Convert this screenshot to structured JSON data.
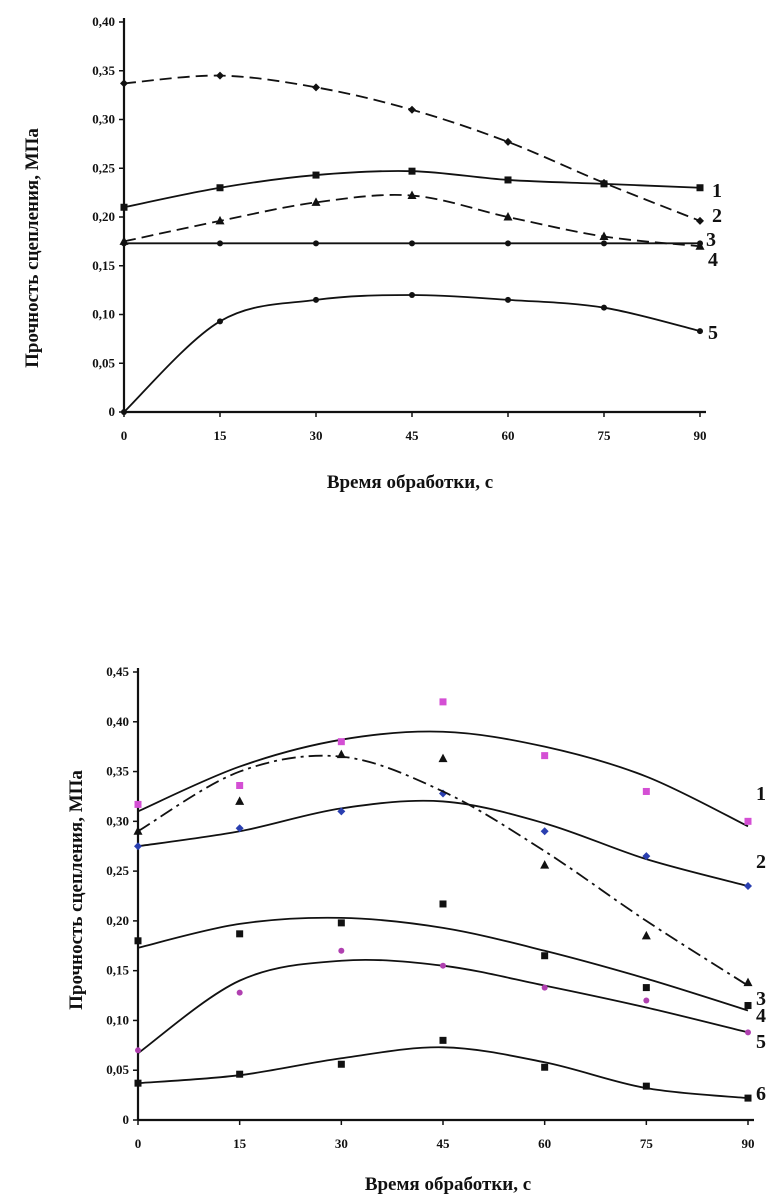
{
  "chart_data": [
    {
      "type": "line",
      "xlabel": "Время обработки, с",
      "ylabel": "Прочность сцепления, МПа",
      "xlim": [
        0,
        90
      ],
      "ylim": [
        0,
        0.4
      ],
      "x_ticks": [
        "0",
        "15",
        "30",
        "45",
        "60",
        "75",
        "90"
      ],
      "y_ticks": [
        "0",
        "0,05",
        "0,10",
        "0,15",
        "0,20",
        "0,25",
        "0,30",
        "0,35",
        "0,40"
      ],
      "grid": false,
      "legend": "curve labels at right end",
      "x": [
        0,
        15,
        30,
        45,
        60,
        75,
        90
      ],
      "series": [
        {
          "name": "1",
          "values": [
            0.21,
            0.23,
            0.243,
            0.247,
            0.238,
            0.234,
            0.23
          ],
          "style": "solid",
          "marker": "square"
        },
        {
          "name": "2",
          "values": [
            0.337,
            0.345,
            0.333,
            0.31,
            0.277,
            0.235,
            0.196
          ],
          "style": "dashed",
          "marker": "diamond"
        },
        {
          "name": "3",
          "values": [
            0.175,
            0.196,
            0.215,
            0.222,
            0.2,
            0.18,
            0.17
          ],
          "style": "dashed",
          "marker": "triangle"
        },
        {
          "name": "4",
          "values": [
            0.173,
            0.173,
            0.173,
            0.173,
            0.173,
            0.173,
            0.173
          ],
          "style": "solid",
          "marker": "dot"
        },
        {
          "name": "5",
          "values": [
            0.0,
            0.093,
            0.115,
            0.12,
            0.115,
            0.107,
            0.083
          ],
          "style": "solid",
          "marker": "dot"
        }
      ]
    },
    {
      "type": "line",
      "xlabel": "Время обработки, с",
      "ylabel": "Прочность сцепления, МПа",
      "xlim": [
        0,
        90
      ],
      "ylim": [
        0,
        0.45
      ],
      "x_ticks": [
        "0",
        "15",
        "30",
        "45",
        "60",
        "75",
        "90"
      ],
      "y_ticks": [
        "0",
        "0,05",
        "0,10",
        "0,15",
        "0,20",
        "0,25",
        "0,30",
        "0,35",
        "0,40",
        "0,45"
      ],
      "grid": false,
      "legend": "curve labels at right end",
      "x": [
        0,
        15,
        30,
        45,
        60,
        75,
        90
      ],
      "series": [
        {
          "name": "1",
          "values": [
            0.317,
            0.336,
            0.38,
            0.42,
            0.366,
            0.33,
            0.3
          ],
          "fit": [
            0.31,
            0.355,
            0.382,
            0.39,
            0.375,
            0.345,
            0.295
          ],
          "style": "solid",
          "marker": "square",
          "color": "#d44fd4"
        },
        {
          "name": "2",
          "values": [
            0.275,
            0.293,
            0.31,
            0.328,
            0.29,
            0.265,
            0.235
          ],
          "fit": [
            0.275,
            0.29,
            0.313,
            0.32,
            0.298,
            0.262,
            0.235
          ],
          "style": "solid",
          "marker": "diamond",
          "color": "#2a3fb0"
        },
        {
          "name": "3",
          "values": [
            0.29,
            0.32,
            0.367,
            0.363,
            0.256,
            0.185,
            0.138
          ],
          "fit": [
            0.29,
            0.35,
            0.365,
            0.33,
            0.27,
            0.2,
            0.135
          ],
          "style": "dashdot",
          "marker": "triangle",
          "color": "#111111"
        },
        {
          "name": "4",
          "values": [
            0.18,
            0.187,
            0.198,
            0.217,
            0.165,
            0.133,
            0.115
          ],
          "fit": [
            0.173,
            0.197,
            0.203,
            0.193,
            0.17,
            0.142,
            0.11
          ],
          "style": "solid",
          "marker": "square",
          "color": "#111111"
        },
        {
          "name": "5",
          "values": [
            0.07,
            0.128,
            0.17,
            0.155,
            0.133,
            0.12,
            0.088
          ],
          "fit": [
            0.067,
            0.14,
            0.16,
            0.155,
            0.135,
            0.113,
            0.088
          ],
          "style": "solid",
          "marker": "dot",
          "color": "#b040b0"
        },
        {
          "name": "6",
          "values": [
            0.037,
            0.046,
            0.056,
            0.08,
            0.053,
            0.034,
            0.022
          ],
          "fit": [
            0.037,
            0.045,
            0.062,
            0.073,
            0.058,
            0.032,
            0.022
          ],
          "style": "solid",
          "marker": "square",
          "color": "#111111"
        }
      ]
    }
  ]
}
